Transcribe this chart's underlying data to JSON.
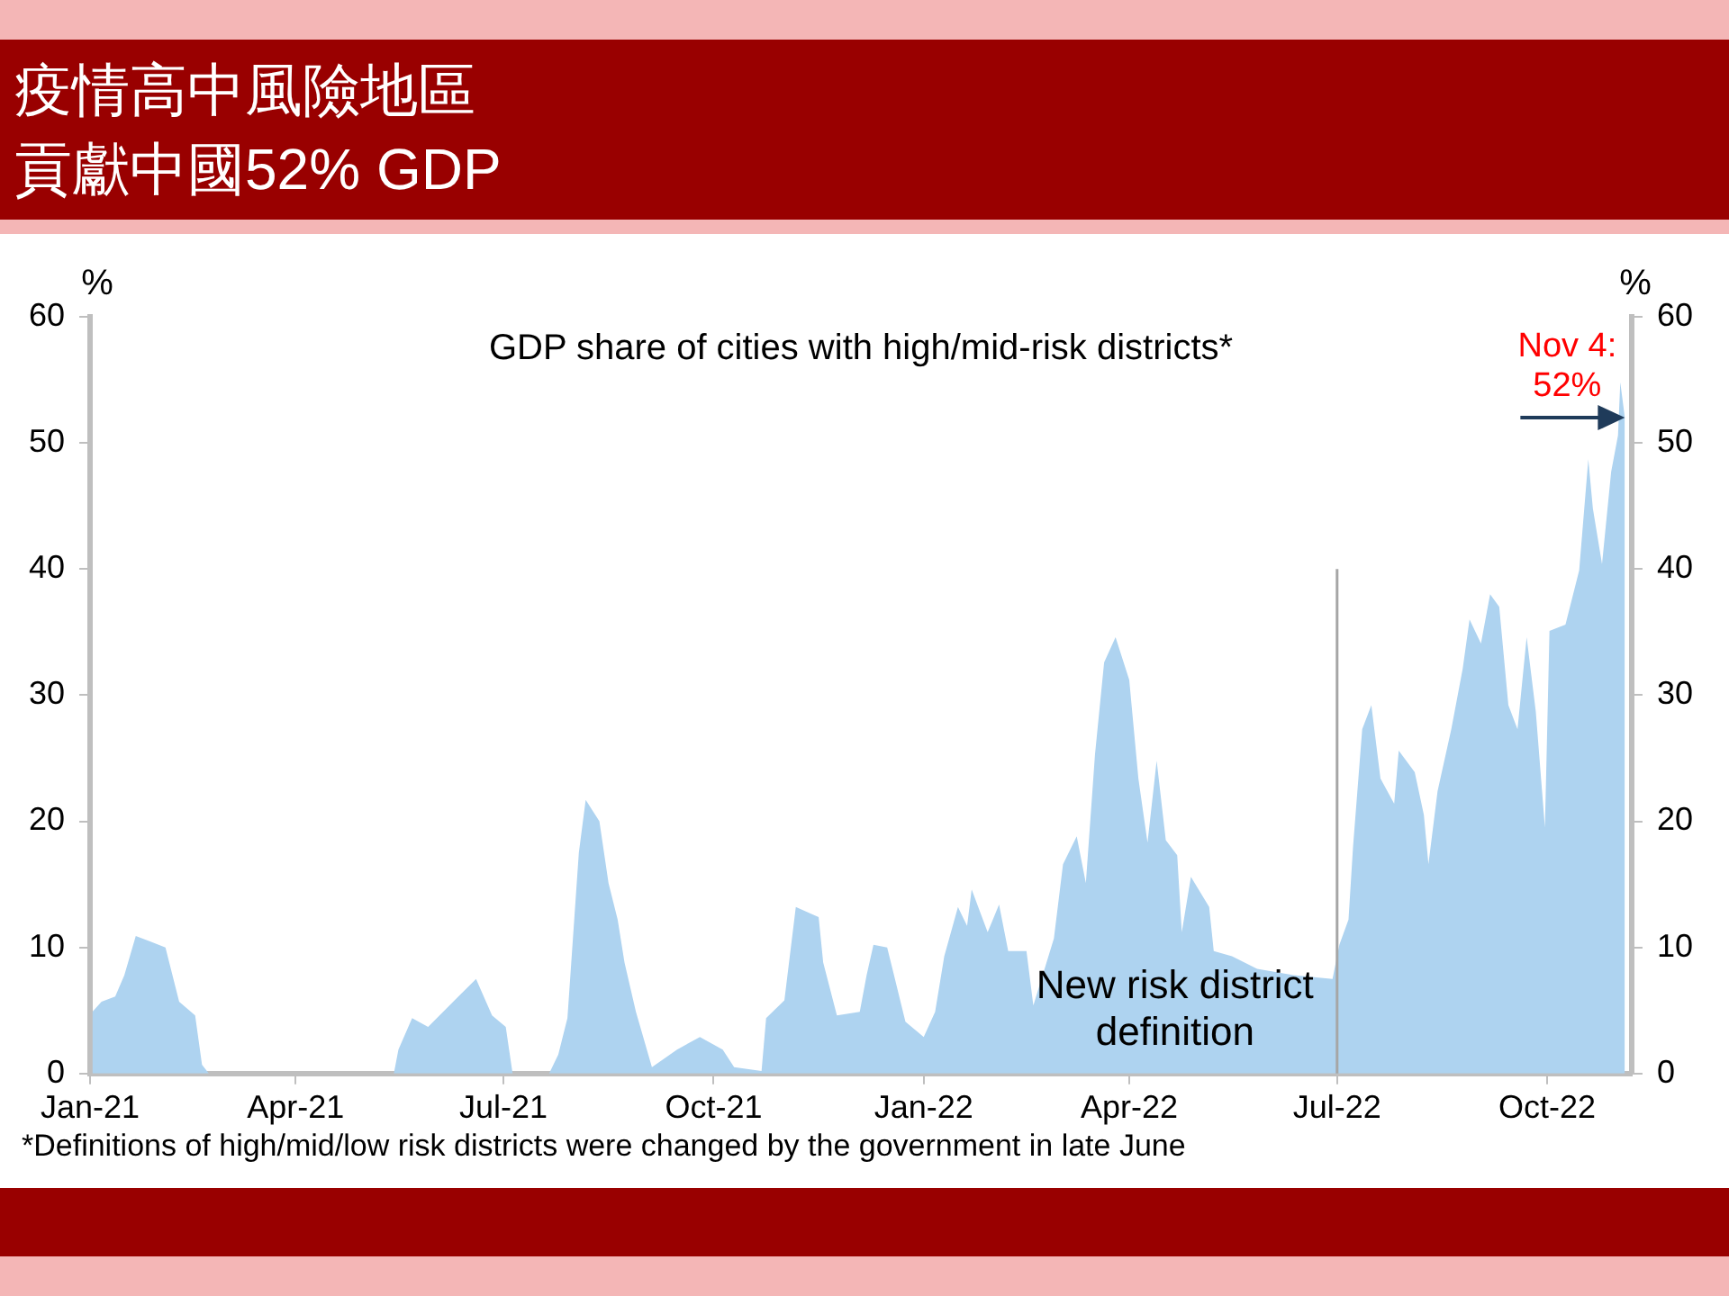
{
  "chart_data": {
    "type": "area",
    "title": "疫情高中風險地區貢獻中國52% GDP",
    "subtitle": "GDP share of cities with high/mid-risk districts*",
    "ylabel": "%",
    "y2label": "%",
    "x": [
      "2021-01-02",
      "2021-01-06",
      "2021-01-12",
      "2021-01-16",
      "2021-01-21",
      "2021-01-27",
      "2021-02-03",
      "2021-02-09",
      "2021-02-16",
      "2021-02-19",
      "2021-02-22",
      "2021-05-14",
      "2021-05-16",
      "2021-05-22",
      "2021-05-29",
      "2021-06-19",
      "2021-06-26",
      "2021-07-02",
      "2021-07-05",
      "2021-07-21",
      "2021-07-25",
      "2021-07-29",
      "2021-08-03",
      "2021-08-06",
      "2021-08-12",
      "2021-08-16",
      "2021-08-20",
      "2021-08-23",
      "2021-08-28",
      "2021-09-04",
      "2021-09-15",
      "2021-09-25",
      "2021-10-05",
      "2021-10-10",
      "2021-10-22",
      "2021-10-24",
      "2021-11-01",
      "2021-11-06",
      "2021-11-16",
      "2021-11-18",
      "2021-11-24",
      "2021-12-04",
      "2021-12-07",
      "2021-12-10",
      "2021-12-16",
      "2021-12-19",
      "2021-12-24",
      "2022-01-01",
      "2022-01-06",
      "2022-01-10",
      "2022-01-16",
      "2022-01-20",
      "2022-01-22",
      "2022-01-29",
      "2022-02-03",
      "2022-02-07",
      "2022-02-15",
      "2022-02-18",
      "2022-02-27",
      "2022-03-03",
      "2022-03-09",
      "2022-03-13",
      "2022-03-17",
      "2022-03-21",
      "2022-03-26",
      "2022-04-01",
      "2022-04-05",
      "2022-04-09",
      "2022-04-13",
      "2022-04-17",
      "2022-04-22",
      "2022-04-24",
      "2022-04-28",
      "2022-05-06",
      "2022-05-08",
      "2022-05-16",
      "2022-05-27",
      "2022-06-12",
      "2022-06-29",
      "2022-07-02",
      "2022-07-06",
      "2022-07-08",
      "2022-07-12",
      "2022-07-16",
      "2022-07-20",
      "2022-07-26",
      "2022-07-28",
      "2022-08-04",
      "2022-08-08",
      "2022-08-10",
      "2022-08-14",
      "2022-08-20",
      "2022-08-25",
      "2022-08-28",
      "2022-09-02",
      "2022-09-06",
      "2022-09-10",
      "2022-09-14",
      "2022-09-18",
      "2022-09-22",
      "2022-09-26",
      "2022-09-30",
      "2022-10-02",
      "2022-10-09",
      "2022-10-15",
      "2022-10-19",
      "2022-10-21",
      "2022-10-25",
      "2022-10-29",
      "2022-11-01",
      "2022-11-02",
      "2022-11-04"
    ],
    "series": [
      {
        "color": "#aed3f0",
        "values": [
          4.9,
          5.7,
          6.1,
          7.8,
          10.9,
          10.5,
          10,
          5.7,
          4.6,
          0.7,
          0,
          0,
          1.9,
          4.4,
          3.7,
          7.5,
          4.6,
          3.7,
          0,
          0,
          1.5,
          4.4,
          17.5,
          21.7,
          20,
          15.1,
          12.2,
          8.8,
          4.9,
          0.5,
          1.9,
          2.9,
          1.9,
          0.5,
          0.2,
          4.4,
          5.8,
          13.2,
          12.4,
          8.8,
          4.6,
          4.9,
          7.8,
          10.2,
          10,
          7.8,
          4.1,
          2.9,
          4.9,
          9.3,
          13.2,
          11.7,
          14.6,
          11.2,
          13.4,
          9.7,
          9.7,
          5.4,
          10.7,
          16.6,
          18.8,
          15.1,
          25.3,
          32.6,
          34.6,
          31.2,
          23.4,
          18.3,
          24.8,
          18.5,
          17.3,
          11.2,
          15.6,
          13.2,
          9.7,
          9.3,
          8.3,
          7.8,
          7.5,
          10.2,
          12.2,
          18,
          27.3,
          29.2,
          23.4,
          21.4,
          25.6,
          23.9,
          20.5,
          16.6,
          22.4,
          27.3,
          32.1,
          36,
          34.1,
          38,
          37,
          29.2,
          27.3,
          34.6,
          28.7,
          19.5,
          35.1,
          35.6,
          39.9,
          48.7,
          44.8,
          40.4,
          47.7,
          50.6,
          54.8,
          52
        ]
      }
    ],
    "xlim": [
      "2021-01-01",
      "2022-11-07"
    ],
    "xticks": [
      {
        "value": "2021-01-01",
        "label": "Jan-21"
      },
      {
        "value": "2021-04-01",
        "label": "Apr-21"
      },
      {
        "value": "2021-07-01",
        "label": "Jul-21"
      },
      {
        "value": "2021-10-01",
        "label": "Oct-21"
      },
      {
        "value": "2022-01-01",
        "label": "Jan-22"
      },
      {
        "value": "2022-04-01",
        "label": "Apr-22"
      },
      {
        "value": "2022-07-01",
        "label": "Jul-22"
      },
      {
        "value": "2022-10-01",
        "label": "Oct-22"
      }
    ],
    "ylim": [
      0,
      60
    ],
    "yticks": [
      0,
      10,
      20,
      30,
      40,
      50,
      60
    ],
    "y2lim": [
      0,
      60
    ],
    "y2ticks": [
      0,
      10,
      20,
      30,
      40,
      50,
      60
    ],
    "ref_lines": [
      {
        "axis": "x",
        "value": "2022-07-01",
        "label": "New risk district\ndefinition",
        "color": "#a6a6a6"
      }
    ],
    "annotations": [
      {
        "text": "Nov 4:\n52%",
        "x": "2022-11-04",
        "y": 52
      },
      "*Definitions of high/mid/low risk districts were changed by the government in late June"
    ],
    "grid": false,
    "legend": false
  }
}
